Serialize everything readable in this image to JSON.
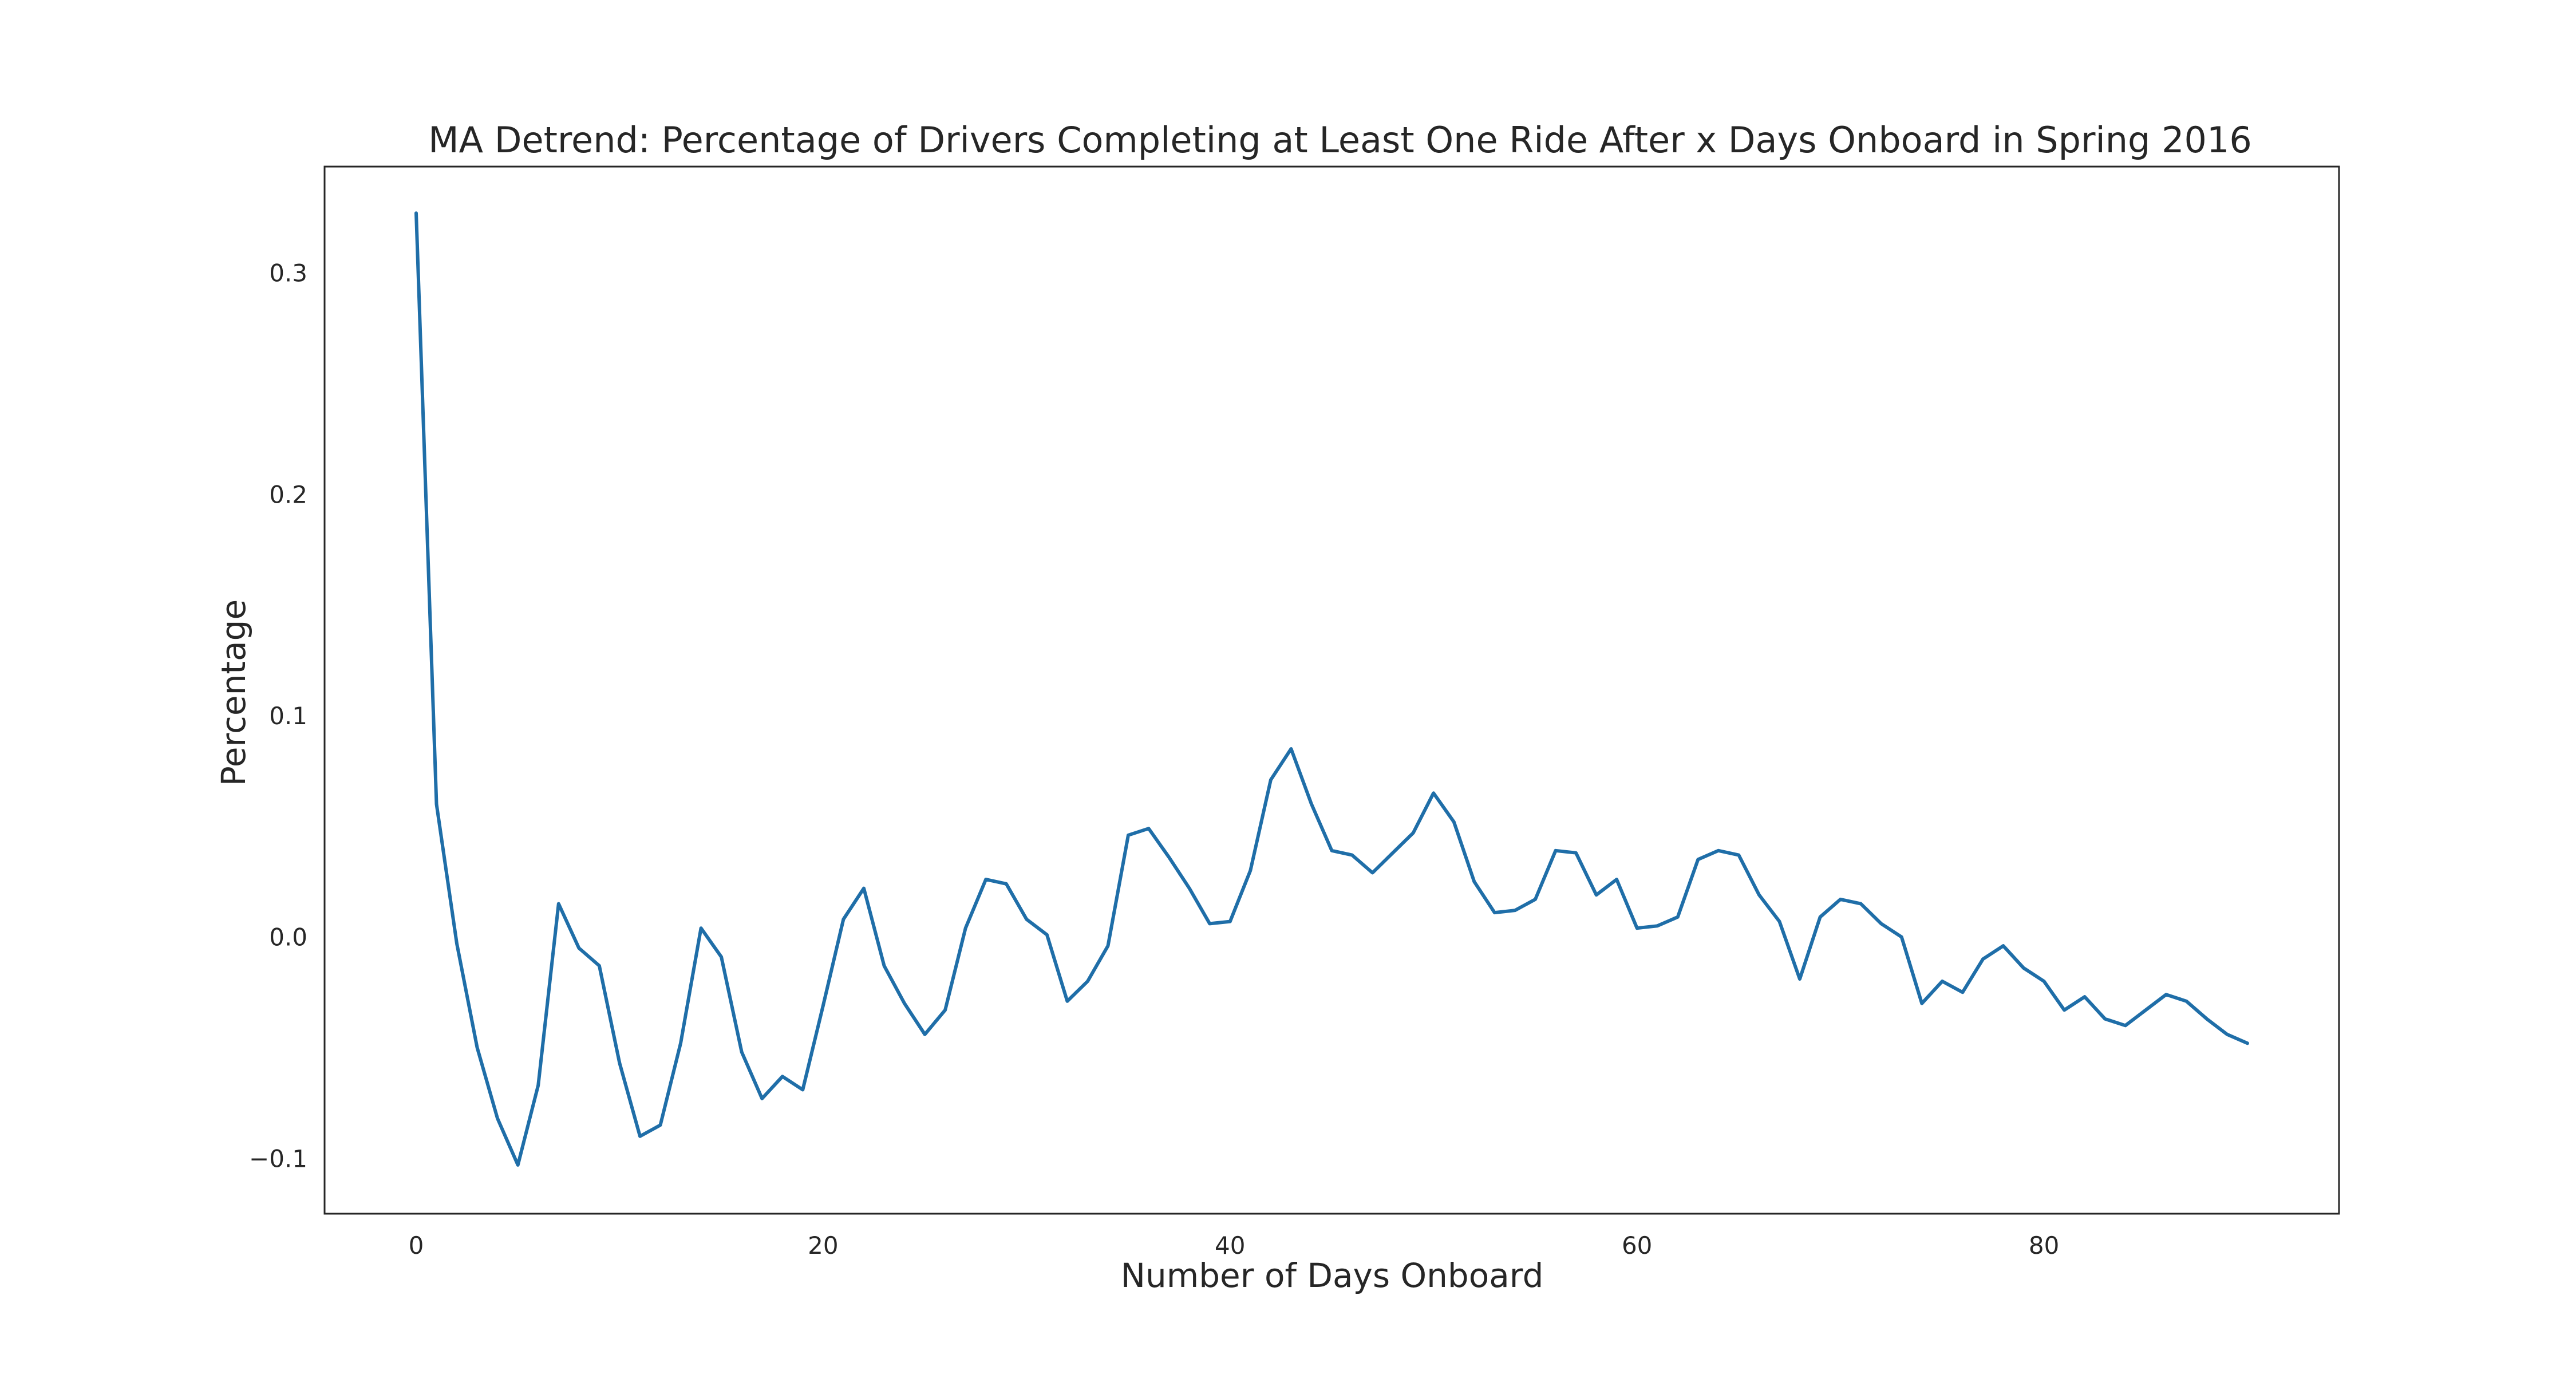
{
  "chart_data": {
    "type": "line",
    "title": "MA Detrend: Percentage of Drivers Completing at Least One Ride After x Days Onboard in Spring 2016",
    "xlabel": "Number of Days Onboard",
    "ylabel": "Percentage",
    "xlim": [
      -4.5,
      94.5
    ],
    "ylim": [
      -0.125,
      0.348
    ],
    "x_ticks": [
      0,
      20,
      40,
      60,
      80
    ],
    "x_tick_labels": [
      "0",
      "20",
      "40",
      "60",
      "80"
    ],
    "y_ticks": [
      -0.1,
      0.0,
      0.1,
      0.2,
      0.3
    ],
    "y_tick_labels": [
      "−0.1",
      "0.0",
      "0.1",
      "0.2",
      "0.3"
    ],
    "grid": false,
    "line_color": "#1f6ea8",
    "x": [
      0,
      1,
      2,
      3,
      4,
      5,
      6,
      7,
      8,
      9,
      10,
      11,
      12,
      13,
      14,
      15,
      16,
      17,
      18,
      19,
      20,
      21,
      22,
      23,
      24,
      25,
      26,
      27,
      28,
      29,
      30,
      31,
      32,
      33,
      34,
      35,
      36,
      37,
      38,
      39,
      40,
      41,
      42,
      43,
      44,
      45,
      46,
      47,
      48,
      49,
      50,
      51,
      52,
      53,
      54,
      55,
      56,
      57,
      58,
      59,
      60,
      61,
      62,
      63,
      64,
      65,
      66,
      67,
      68,
      69,
      70,
      71,
      72,
      73,
      74,
      75,
      76,
      77,
      78,
      79,
      80,
      81,
      82,
      83,
      84,
      85,
      86,
      87,
      88,
      89,
      90
    ],
    "y": [
      0.327,
      0.06,
      -0.003,
      -0.05,
      -0.082,
      -0.103,
      -0.067,
      0.015,
      -0.005,
      -0.013,
      -0.057,
      -0.09,
      -0.085,
      -0.048,
      0.004,
      -0.009,
      -0.052,
      -0.073,
      -0.063,
      -0.069,
      -0.031,
      0.008,
      0.022,
      -0.013,
      -0.03,
      -0.044,
      -0.033,
      0.004,
      0.026,
      0.024,
      0.008,
      0.001,
      -0.029,
      -0.02,
      -0.004,
      0.046,
      0.049,
      0.036,
      0.022,
      0.006,
      0.007,
      0.03,
      0.071,
      0.085,
      0.06,
      0.039,
      0.037,
      0.029,
      0.038,
      0.047,
      0.065,
      0.052,
      0.025,
      0.011,
      0.012,
      0.017,
      0.039,
      0.038,
      0.019,
      0.026,
      0.004,
      0.005,
      0.009,
      0.035,
      0.039,
      0.037,
      0.019,
      0.007,
      -0.019,
      0.009,
      0.017,
      0.015,
      0.006,
      0.0,
      -0.03,
      -0.02,
      -0.025,
      -0.01,
      -0.004,
      -0.014,
      -0.02,
      -0.033,
      -0.027,
      -0.037,
      -0.04,
      -0.033,
      -0.026,
      -0.029,
      -0.037,
      -0.044,
      -0.048
    ]
  }
}
